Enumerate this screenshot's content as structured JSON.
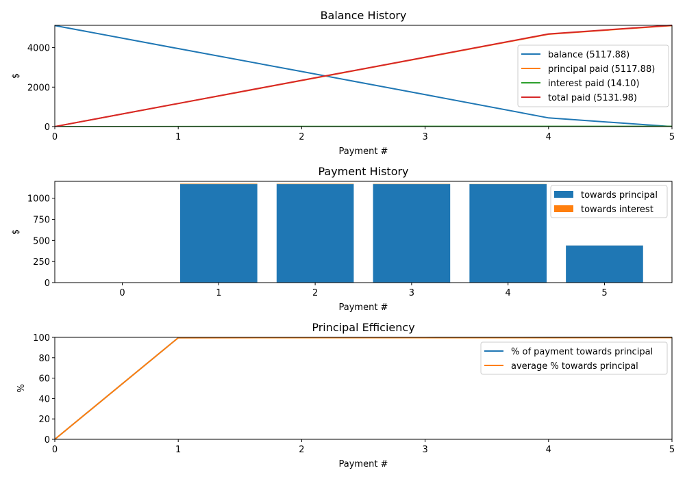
{
  "chart_data": [
    {
      "type": "line",
      "title": "Balance History",
      "xlabel": "Payment #",
      "ylabel": "$",
      "xlim": [
        0,
        5
      ],
      "ylim": [
        0,
        5130
      ],
      "xticks": [
        "0",
        "1",
        "2",
        "3",
        "4",
        "5"
      ],
      "yticks": [
        "0",
        "2000",
        "4000"
      ],
      "ytick_values": [
        0,
        2000,
        4000
      ],
      "grid": false,
      "legend_position": "right",
      "x": [
        0,
        1,
        2,
        3,
        4,
        5
      ],
      "series": [
        {
          "name": "balance (5117.88)",
          "color": "#1f77b4",
          "values": [
            5117.88,
            3950,
            2790,
            1620,
            440,
            0
          ]
        },
        {
          "name": "principal paid (5117.88)",
          "color": "#ff7f0e",
          "values": [
            0,
            1167.5,
            2335,
            3502.5,
            4680,
            5117.88
          ]
        },
        {
          "name": "interest paid (14.10)",
          "color": "#2ca02c",
          "values": [
            0,
            5,
            9,
            12,
            13.8,
            14.1
          ]
        },
        {
          "name": "total paid (5131.98)",
          "color": "#d62728",
          "values": [
            0,
            1172.5,
            2344,
            3514.5,
            4693.8,
            5131.98
          ]
        }
      ]
    },
    {
      "type": "bar",
      "title": "Payment History",
      "xlabel": "Payment #",
      "ylabel": "$",
      "ylim": [
        0,
        1200
      ],
      "categories": [
        "0",
        "1",
        "2",
        "3",
        "4",
        "5"
      ],
      "yticks": [
        "0",
        "250",
        "500",
        "750",
        "1000"
      ],
      "ytick_values": [
        0,
        250,
        500,
        750,
        1000
      ],
      "grid": false,
      "legend_position": "top-right",
      "stacked": true,
      "series": [
        {
          "name": "towards principal",
          "color": "#1f77b4",
          "values": [
            0,
            1167,
            1167,
            1167,
            1167,
            440
          ]
        },
        {
          "name": "towards interest",
          "color": "#ff7f0e",
          "values": [
            0,
            5,
            4,
            3,
            2,
            0.3
          ]
        }
      ]
    },
    {
      "type": "line",
      "title": "Principal Efficiency",
      "xlabel": "Payment #",
      "ylabel": "%",
      "xlim": [
        0,
        5
      ],
      "ylim": [
        0,
        100
      ],
      "xticks": [
        "0",
        "1",
        "2",
        "3",
        "4",
        "5"
      ],
      "yticks": [
        "0",
        "20",
        "40",
        "60",
        "80",
        "100"
      ],
      "ytick_values": [
        0,
        20,
        40,
        60,
        80,
        100
      ],
      "grid": false,
      "legend_position": "top-right",
      "x": [
        0,
        1,
        2,
        3,
        4,
        5
      ],
      "series": [
        {
          "name": "% of payment towards principal",
          "color": "#1f77b4",
          "values": [
            0,
            99.6,
            99.7,
            99.7,
            99.8,
            99.9
          ]
        },
        {
          "name": "average % towards principal",
          "color": "#ff7f0e",
          "values": [
            0,
            99.6,
            99.65,
            99.7,
            99.7,
            99.72
          ]
        }
      ]
    }
  ]
}
